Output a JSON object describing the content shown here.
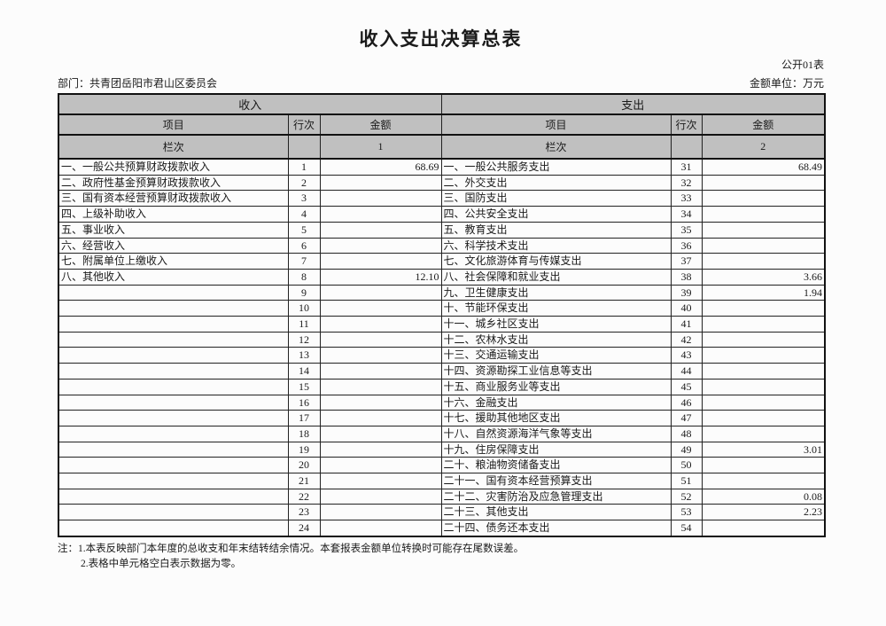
{
  "page": {
    "title": "收入支出决算总表",
    "table_code": "公开01表",
    "department": "部门：共青团岳阳市君山区委员会",
    "unit": "金额单位：万元"
  },
  "colors": {
    "header_bg": "#c0c0c0",
    "border": "#222222"
  },
  "table": {
    "income_group_header": "收入",
    "expense_group_header": "支出",
    "column_headers": {
      "income_item": "项目",
      "income_line_no": "行次",
      "income_amount": "金额",
      "expense_item": "项目",
      "expense_line_no": "行次",
      "expense_amount": "金额"
    },
    "index_row": {
      "income_label": "栏次",
      "income_line_no": "",
      "income_amount_index": "1",
      "expense_label": "栏次",
      "expense_line_no": "",
      "expense_amount_index": "2"
    },
    "rows": [
      {
        "income_item": "一、一般公共预算财政拨款收入",
        "income_line": "1",
        "income_amount": "68.69",
        "expense_item": "一、一般公共服务支出",
        "expense_line": "31",
        "expense_amount": "68.49"
      },
      {
        "income_item": "二、政府性基金预算财政拨款收入",
        "income_line": "2",
        "income_amount": "",
        "expense_item": "二、外交支出",
        "expense_line": "32",
        "expense_amount": ""
      },
      {
        "income_item": "三、国有资本经营预算财政拨款收入",
        "income_line": "3",
        "income_amount": "",
        "expense_item": "三、国防支出",
        "expense_line": "33",
        "expense_amount": ""
      },
      {
        "income_item": "四、上级补助收入",
        "income_line": "4",
        "income_amount": "",
        "expense_item": "四、公共安全支出",
        "expense_line": "34",
        "expense_amount": ""
      },
      {
        "income_item": "五、事业收入",
        "income_line": "5",
        "income_amount": "",
        "expense_item": "五、教育支出",
        "expense_line": "35",
        "expense_amount": ""
      },
      {
        "income_item": "六、经营收入",
        "income_line": "6",
        "income_amount": "",
        "expense_item": "六、科学技术支出",
        "expense_line": "36",
        "expense_amount": ""
      },
      {
        "income_item": "七、附属单位上缴收入",
        "income_line": "7",
        "income_amount": "",
        "expense_item": "七、文化旅游体育与传媒支出",
        "expense_line": "37",
        "expense_amount": ""
      },
      {
        "income_item": "八、其他收入",
        "income_line": "8",
        "income_amount": "12.10",
        "expense_item": "八、社会保障和就业支出",
        "expense_line": "38",
        "expense_amount": "3.66"
      },
      {
        "income_item": "",
        "income_line": "9",
        "income_amount": "",
        "expense_item": "九、卫生健康支出",
        "expense_line": "39",
        "expense_amount": "1.94"
      },
      {
        "income_item": "",
        "income_line": "10",
        "income_amount": "",
        "expense_item": "十、节能环保支出",
        "expense_line": "40",
        "expense_amount": ""
      },
      {
        "income_item": "",
        "income_line": "11",
        "income_amount": "",
        "expense_item": "十一、城乡社区支出",
        "expense_line": "41",
        "expense_amount": ""
      },
      {
        "income_item": "",
        "income_line": "12",
        "income_amount": "",
        "expense_item": "十二、农林水支出",
        "expense_line": "42",
        "expense_amount": ""
      },
      {
        "income_item": "",
        "income_line": "13",
        "income_amount": "",
        "expense_item": "十三、交通运输支出",
        "expense_line": "43",
        "expense_amount": ""
      },
      {
        "income_item": "",
        "income_line": "14",
        "income_amount": "",
        "expense_item": "十四、资源勘探工业信息等支出",
        "expense_line": "44",
        "expense_amount": ""
      },
      {
        "income_item": "",
        "income_line": "15",
        "income_amount": "",
        "expense_item": "十五、商业服务业等支出",
        "expense_line": "45",
        "expense_amount": ""
      },
      {
        "income_item": "",
        "income_line": "16",
        "income_amount": "",
        "expense_item": "十六、金融支出",
        "expense_line": "46",
        "expense_amount": ""
      },
      {
        "income_item": "",
        "income_line": "17",
        "income_amount": "",
        "expense_item": "十七、援助其他地区支出",
        "expense_line": "47",
        "expense_amount": ""
      },
      {
        "income_item": "",
        "income_line": "18",
        "income_amount": "",
        "expense_item": "十八、自然资源海洋气象等支出",
        "expense_line": "48",
        "expense_amount": ""
      },
      {
        "income_item": "",
        "income_line": "19",
        "income_amount": "",
        "expense_item": "十九、住房保障支出",
        "expense_line": "49",
        "expense_amount": "3.01"
      },
      {
        "income_item": "",
        "income_line": "20",
        "income_amount": "",
        "expense_item": "二十、粮油物资储备支出",
        "expense_line": "50",
        "expense_amount": ""
      },
      {
        "income_item": "",
        "income_line": "21",
        "income_amount": "",
        "expense_item": "二十一、国有资本经营预算支出",
        "expense_line": "51",
        "expense_amount": ""
      },
      {
        "income_item": "",
        "income_line": "22",
        "income_amount": "",
        "expense_item": "二十二、灾害防治及应急管理支出",
        "expense_line": "52",
        "expense_amount": "0.08"
      },
      {
        "income_item": "",
        "income_line": "23",
        "income_amount": "",
        "expense_item": "二十三、其他支出",
        "expense_line": "53",
        "expense_amount": "2.23"
      },
      {
        "income_item": "",
        "income_line": "24",
        "income_amount": "",
        "expense_item": "二十四、债务还本支出",
        "expense_line": "54",
        "expense_amount": ""
      }
    ]
  },
  "notes": {
    "prefix": "注：",
    "line1": "1.本表反映部门本年度的总收支和年末结转结余情况。本套报表金额单位转换时可能存在尾数误差。",
    "line2": "2.表格中单元格空白表示数据为零。"
  }
}
